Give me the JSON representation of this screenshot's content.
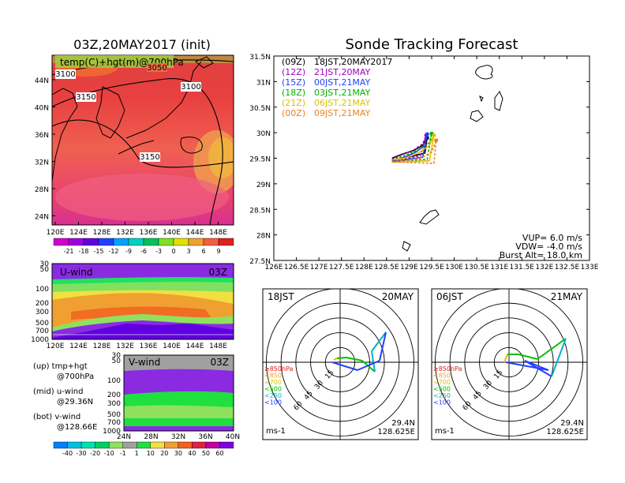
{
  "left_panel": {
    "title": "03Z,20MAY2017 (init)",
    "map_label": "temp(C)+hgt(m)@700hPa",
    "contours": [
      "3100",
      "3050",
      "3100",
      "3150",
      "3150"
    ],
    "lat_ticks": [
      "44N",
      "40N",
      "36N",
      "32N",
      "28N",
      "24N"
    ],
    "lon_ticks": [
      "120E",
      "124E",
      "128E",
      "132E",
      "136E",
      "140E",
      "144E",
      "148E"
    ],
    "temp_colorbar": [
      "-21",
      "-18",
      "-15",
      "-12",
      "-9",
      "-6",
      "-3",
      "0",
      "3",
      "6",
      "9"
    ],
    "temp_colors": [
      "#d000d0",
      "#a000e0",
      "#6000e0",
      "#2040ff",
      "#00a0ff",
      "#00d0c0",
      "#00c060",
      "#80e020",
      "#e0e000",
      "#f0a030",
      "#f06040",
      "#e02020"
    ],
    "uwind": {
      "label": "U-wind",
      "time": "03Z",
      "p_ticks": [
        "30",
        "50",
        "100",
        "200",
        "300",
        "500",
        "700",
        "1000"
      ],
      "lon_ticks": [
        "120E",
        "124E",
        "128E",
        "132E",
        "136E",
        "140E",
        "144E",
        "148E"
      ]
    },
    "vwind": {
      "label": "V-wind",
      "time": "03Z",
      "p_ticks": [
        "30",
        "50",
        "100",
        "200",
        "300",
        "500",
        "700",
        "1000"
      ],
      "lat_ticks": [
        "24N",
        "28N",
        "32N",
        "36N",
        "40N"
      ]
    },
    "wind_colorbar": [
      "-40",
      "-30",
      "-20",
      "-10",
      "-1",
      "1",
      "10",
      "20",
      "30",
      "40",
      "50",
      "60"
    ],
    "wind_colors": [
      "#0080ff",
      "#00c0e0",
      "#00e0b0",
      "#00d060",
      "#90e060",
      "#a0a0a0",
      "#20e040",
      "#f0e040",
      "#f0a030",
      "#f06020",
      "#e02040",
      "#c000a0",
      "#8000e0"
    ],
    "notes": [
      "(up) tmp+hgt",
      "@700hPa",
      "(mid) u-wind",
      "@29.36N",
      "(bot) v-wind",
      "@128.66E"
    ]
  },
  "track": {
    "title": "Sonde Tracking Forecast",
    "lat_ticks": [
      "31.5N",
      "31N",
      "30.5N",
      "30N",
      "29.5N",
      "29N",
      "28.5N",
      "28N",
      "27.5N"
    ],
    "lon_ticks": [
      "126E",
      "126.5E",
      "127E",
      "127.5E",
      "128E",
      "128.5E",
      "129E",
      "129.5E",
      "130E",
      "130.5E",
      "131E",
      "131.5E",
      "132E",
      "132.5E",
      "133E"
    ],
    "legend": [
      {
        "code": "(09Z)",
        "time": "18JST,20MAY2017",
        "color": "#000000"
      },
      {
        "code": "(12Z)",
        "time": "21JST,20MAY",
        "color": "#a000c0"
      },
      {
        "code": "(15Z)",
        "time": "00JST,21MAY",
        "color": "#2040ff"
      },
      {
        "code": "(18Z)",
        "time": "03JST,21MAY",
        "color": "#00b000"
      },
      {
        "code": "(21Z)",
        "time": "06JST,21MAY",
        "color": "#e0c000"
      },
      {
        "code": "(00Z)",
        "time": "09JST,21MAY",
        "color": "#f08020"
      }
    ],
    "params": [
      "VUP= 6.0 m/s",
      "VDW= -4.0 m/s",
      "Burst Alt= 18.0 km"
    ]
  },
  "chart_data": {
    "type": "line",
    "title": "Sonde Tracking Forecast",
    "xlim": [
      126,
      133
    ],
    "ylim": [
      27.5,
      31.5
    ],
    "series": [
      {
        "name": "(09Z) 18JST,20MAY2017",
        "lon": [
          128.62,
          128.85,
          129.1,
          129.3,
          129.4,
          129.35,
          128.62
        ],
        "lat": [
          29.5,
          29.58,
          29.65,
          29.75,
          29.9,
          29.6,
          29.45
        ]
      },
      {
        "name": "(12Z) 21JST,20MAY",
        "lon": [
          128.62,
          128.85,
          129.1,
          129.3,
          129.38,
          129.25,
          128.62
        ],
        "lat": [
          29.48,
          29.57,
          29.66,
          29.78,
          29.95,
          29.55,
          29.44
        ]
      },
      {
        "name": "(15Z) 00JST,21MAY",
        "lon": [
          128.62,
          128.9,
          129.15,
          129.35,
          129.4,
          129.3,
          128.62
        ],
        "lat": [
          29.45,
          29.52,
          29.62,
          29.75,
          29.97,
          29.52,
          29.43
        ]
      },
      {
        "name": "(18Z) 03JST,21MAY",
        "lon": [
          128.62,
          128.9,
          129.2,
          129.45,
          129.5,
          129.4,
          128.62
        ],
        "lat": [
          29.46,
          29.55,
          29.66,
          29.8,
          29.98,
          29.48,
          29.43
        ]
      },
      {
        "name": "(21Z) 06JST,21MAY",
        "lon": [
          128.62,
          128.9,
          129.2,
          129.45,
          129.55,
          129.45,
          128.62
        ],
        "lat": [
          29.47,
          29.5,
          29.6,
          29.75,
          29.95,
          29.45,
          29.42
        ]
      },
      {
        "name": "(00Z) 09JST,21MAY",
        "lon": [
          128.62,
          128.9,
          129.25,
          129.5,
          129.6,
          129.55,
          128.62
        ],
        "lat": [
          29.47,
          29.45,
          29.5,
          29.62,
          29.85,
          29.4,
          29.43
        ]
      }
    ]
  },
  "hodographs": [
    {
      "left": "18JST",
      "right": "20MAY",
      "lat": "29.4N",
      "lon": "128.625E",
      "units": "ms-1",
      "rings": [
        "15",
        "30",
        "45",
        "60"
      ],
      "levels": [
        "≥850hPa",
        "<850",
        "<700",
        "<500",
        "<250",
        "<100"
      ],
      "level_colors": [
        "#e02020",
        "#f0a030",
        "#e0c000",
        "#00c000",
        "#00b0d0",
        "#2040ff"
      ]
    },
    {
      "left": "06JST",
      "right": "21MAY",
      "lat": "29.4N",
      "lon": "128.625E",
      "units": "ms-1",
      "rings": [
        "15",
        "30",
        "45",
        "60"
      ],
      "levels": [
        "≥850hPa",
        "<850",
        "<700",
        "<500",
        "<250",
        "<100"
      ],
      "level_colors": [
        "#e02020",
        "#f0a030",
        "#e0c000",
        "#00c000",
        "#00b0d0",
        "#2040ff"
      ]
    }
  ]
}
